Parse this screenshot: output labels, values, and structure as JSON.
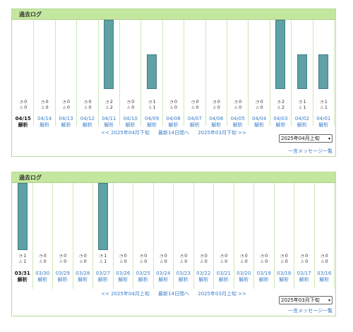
{
  "panels": [
    {
      "title": "過去ログ",
      "days": [
        {
          "date": "04/15",
          "analysis": "解析",
          "a": "0",
          "b": "0",
          "value": 0,
          "current": true
        },
        {
          "date": "04/14",
          "analysis": "解析",
          "a": "0",
          "b": "0",
          "value": 0
        },
        {
          "date": "04/13",
          "analysis": "解析",
          "a": "0",
          "b": "0",
          "value": 0
        },
        {
          "date": "04/12",
          "analysis": "解析",
          "a": "0",
          "b": "0",
          "value": 0
        },
        {
          "date": "04/11",
          "analysis": "解析",
          "a": "2",
          "b": "2",
          "value": 2
        },
        {
          "date": "04/10",
          "analysis": "解析",
          "a": "0",
          "b": "0",
          "value": 0
        },
        {
          "date": "04/09",
          "analysis": "解析",
          "a": "1",
          "b": "1",
          "value": 1
        },
        {
          "date": "04/08",
          "analysis": "解析",
          "a": "0",
          "b": "0",
          "value": 0
        },
        {
          "date": "04/07",
          "analysis": "解析",
          "a": "0",
          "b": "0",
          "value": 0
        },
        {
          "date": "04/06",
          "analysis": "解析",
          "a": "0",
          "b": "0",
          "value": 0
        },
        {
          "date": "04/05",
          "analysis": "解析",
          "a": "0",
          "b": "0",
          "value": 0
        },
        {
          "date": "04/04",
          "analysis": "解析",
          "a": "0",
          "b": "0",
          "value": 0
        },
        {
          "date": "04/03",
          "analysis": "解析",
          "a": "2",
          "b": "2",
          "value": 2
        },
        {
          "date": "04/02",
          "analysis": "解析",
          "a": "1",
          "b": "1",
          "value": 1
        },
        {
          "date": "04/01",
          "analysis": "解析",
          "a": "1",
          "b": "1",
          "value": 1
        }
      ],
      "max": 2,
      "pager": {
        "prev": "<< 2025年04月下旬",
        "latest": "最新14日間へ",
        "next": "2025年03月下旬 >>"
      },
      "select": "2025年04月上旬",
      "message_link": "一言メッセージ一覧"
    },
    {
      "title": "過去ログ",
      "days": [
        {
          "date": "03/31",
          "analysis": "解析",
          "a": "1",
          "b": "1",
          "value": 1,
          "current": true
        },
        {
          "date": "03/30",
          "analysis": "解析",
          "a": "0",
          "b": "0",
          "value": 0
        },
        {
          "date": "03/29",
          "analysis": "解析",
          "a": "0",
          "b": "0",
          "value": 0
        },
        {
          "date": "03/28",
          "analysis": "解析",
          "a": "0",
          "b": "0",
          "value": 0
        },
        {
          "date": "03/27",
          "analysis": "解析",
          "a": "1",
          "b": "1",
          "value": 1
        },
        {
          "date": "03/26",
          "analysis": "解析",
          "a": "0",
          "b": "0",
          "value": 0
        },
        {
          "date": "03/25",
          "analysis": "解析",
          "a": "0",
          "b": "0",
          "value": 0
        },
        {
          "date": "03/24",
          "analysis": "解析",
          "a": "0",
          "b": "0",
          "value": 0
        },
        {
          "date": "03/23",
          "analysis": "解析",
          "a": "0",
          "b": "0",
          "value": 0
        },
        {
          "date": "03/22",
          "analysis": "解析",
          "a": "0",
          "b": "0",
          "value": 0
        },
        {
          "date": "03/21",
          "analysis": "解析",
          "a": "0",
          "b": "0",
          "value": 0
        },
        {
          "date": "03/20",
          "analysis": "解析",
          "a": "0",
          "b": "0",
          "value": 0
        },
        {
          "date": "03/19",
          "analysis": "解析",
          "a": "0",
          "b": "0",
          "value": 0
        },
        {
          "date": "03/18",
          "analysis": "解析",
          "a": "0",
          "b": "0",
          "value": 0
        },
        {
          "date": "03/17",
          "analysis": "解析",
          "a": "0",
          "b": "0",
          "value": 0
        },
        {
          "date": "03/16",
          "analysis": "解析",
          "a": "0",
          "b": "0",
          "value": 0
        }
      ],
      "max": 1,
      "pager": {
        "prev": "<< 2025年04月上旬",
        "latest": "最新14日間へ",
        "next": "2025年03月上旬 >>"
      },
      "select": "2025年03月下旬",
      "message_link": "一言メッセージ一覧"
    }
  ],
  "icons": {
    "visit": "visitor-icon",
    "person": "person-icon"
  },
  "colors": {
    "bar": "#5fa1a5",
    "header": "#c4e79f",
    "link": "#3a7ec8"
  }
}
